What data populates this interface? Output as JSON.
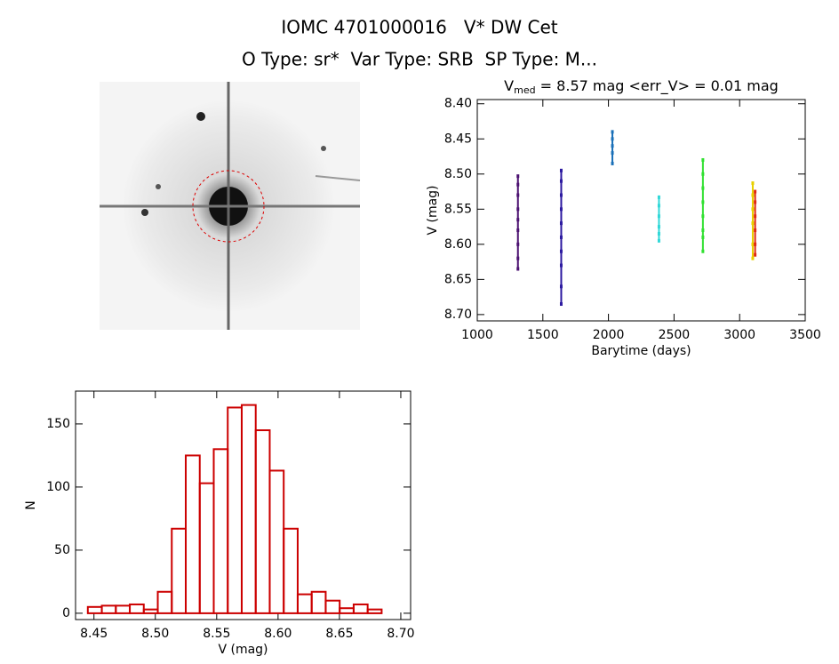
{
  "header": {
    "title": "IOMC 4701000016   V* DW Cet",
    "subtitle": "O Type: sr*  Var Type: SRB  SP Type: M..."
  },
  "chart_data": [
    {
      "type": "scatter",
      "title_parts": [
        "V",
        "med",
        " = 8.57 mag <err_V> = 0.01 mag"
      ],
      "xlabel": "Barytime (days)",
      "ylabel": "V (mag)",
      "xlim": [
        1000,
        3500
      ],
      "xticks": [
        1000,
        1500,
        2000,
        2500,
        3000,
        3500
      ],
      "ylim": [
        8.709,
        8.394
      ],
      "yticks": [
        {
          "value": 8.4,
          "label": "8.40"
        },
        8.45,
        {
          "value": 8.5,
          "label": "8.50"
        },
        8.55,
        {
          "value": 8.6,
          "label": "8.60"
        },
        8.65,
        {
          "value": 8.7,
          "label": "8.70"
        }
      ],
      "series": [
        {
          "color": "#4b1070",
          "x": [
            1310,
            1310,
            1310,
            1310,
            1310,
            1310,
            1310,
            1310,
            1310
          ],
          "values": [
            8.503,
            8.515,
            8.53,
            8.55,
            8.565,
            8.58,
            8.6,
            8.62,
            8.635
          ]
        },
        {
          "color": "#2d1aa0",
          "x": [
            1640,
            1640,
            1640,
            1640,
            1640,
            1640,
            1640,
            1640,
            1640,
            1640
          ],
          "values": [
            8.495,
            8.51,
            8.53,
            8.55,
            8.57,
            8.59,
            8.61,
            8.63,
            8.66,
            8.685
          ]
        },
        {
          "color": "#1a70b8",
          "x": [
            2030,
            2030,
            2030,
            2030,
            2030
          ],
          "values": [
            8.44,
            8.45,
            8.46,
            8.47,
            8.485
          ]
        },
        {
          "color": "#30d8d8",
          "x": [
            2385,
            2385,
            2385,
            2385,
            2385,
            2385
          ],
          "values": [
            8.533,
            8.545,
            8.56,
            8.575,
            8.585,
            8.595
          ]
        },
        {
          "color": "#30e030",
          "x": [
            2720,
            2720,
            2720,
            2720,
            2720,
            2720,
            2720,
            2720
          ],
          "values": [
            8.48,
            8.5,
            8.52,
            8.54,
            8.56,
            8.58,
            8.59,
            8.61
          ]
        },
        {
          "color": "#e8d000",
          "x": [
            3100,
            3100,
            3100,
            3100,
            3100,
            3100
          ],
          "values": [
            8.513,
            8.53,
            8.55,
            8.57,
            8.6,
            8.62
          ]
        },
        {
          "color": "#e02810",
          "x": [
            3118,
            3118,
            3118,
            3118,
            3118,
            3118
          ],
          "values": [
            8.525,
            8.54,
            8.56,
            8.58,
            8.6,
            8.615
          ]
        }
      ]
    },
    {
      "type": "histogram",
      "color": "#cc0000",
      "xlabel": "V (mag)",
      "ylabel": "N",
      "xlim": [
        8.435,
        8.708
      ],
      "xticks": [
        8.45,
        {
          "value": 8.5,
          "label": "8.50"
        },
        8.55,
        {
          "value": 8.6,
          "label": "8.60"
        },
        8.65,
        {
          "value": 8.7,
          "label": "8.70"
        }
      ],
      "ylim": [
        -5,
        176
      ],
      "yticks": [
        0,
        50,
        100,
        150
      ],
      "bins": [
        8.445,
        8.4564,
        8.4678,
        8.4792,
        8.4906,
        8.502,
        8.5134,
        8.5248,
        8.5362,
        8.5476,
        8.559,
        8.5704,
        8.5818,
        8.5932,
        8.6046,
        8.616,
        8.6274,
        8.6388,
        8.6502,
        8.6616,
        8.673,
        8.6844
      ],
      "values": [
        5,
        6,
        6,
        7,
        3,
        17,
        67,
        125,
        103,
        130,
        163,
        165,
        145,
        113,
        67,
        15,
        17,
        10,
        4,
        7,
        3
      ]
    }
  ]
}
